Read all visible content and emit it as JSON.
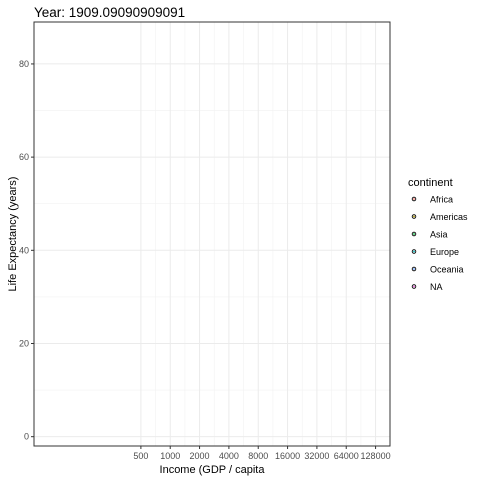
{
  "chart_data": {
    "type": "scatter",
    "title": "Year: 1909.09090909091",
    "xlabel": "Income (GDP / capita",
    "ylabel": "Life Expectancy (years)",
    "x_scale": "log2",
    "x_ticks": [
      500,
      1000,
      2000,
      4000,
      8000,
      16000,
      32000,
      64000,
      128000
    ],
    "x_tick_labels": [
      "500",
      "1000",
      "2000",
      "4000",
      "8000",
      "16000",
      "32000",
      "64000",
      "128000"
    ],
    "y_ticks": [
      0,
      20,
      40,
      60,
      80
    ],
    "y_tick_labels": [
      "0",
      "20",
      "40",
      "60",
      "80"
    ],
    "xlim": [
      40,
      180000
    ],
    "ylim": [
      -2,
      89
    ],
    "grid": true,
    "legend_position": "right",
    "legend": {
      "title": "continent",
      "entries": [
        {
          "label": "Africa",
          "color": "#f8766d"
        },
        {
          "label": "Americas",
          "color": "#b79f00"
        },
        {
          "label": "Asia",
          "color": "#00ba38"
        },
        {
          "label": "Europe",
          "color": "#00bfc4"
        },
        {
          "label": "Oceania",
          "color": "#619cff"
        },
        {
          "label": "NA",
          "color": "#f564e3"
        }
      ]
    },
    "series": []
  }
}
